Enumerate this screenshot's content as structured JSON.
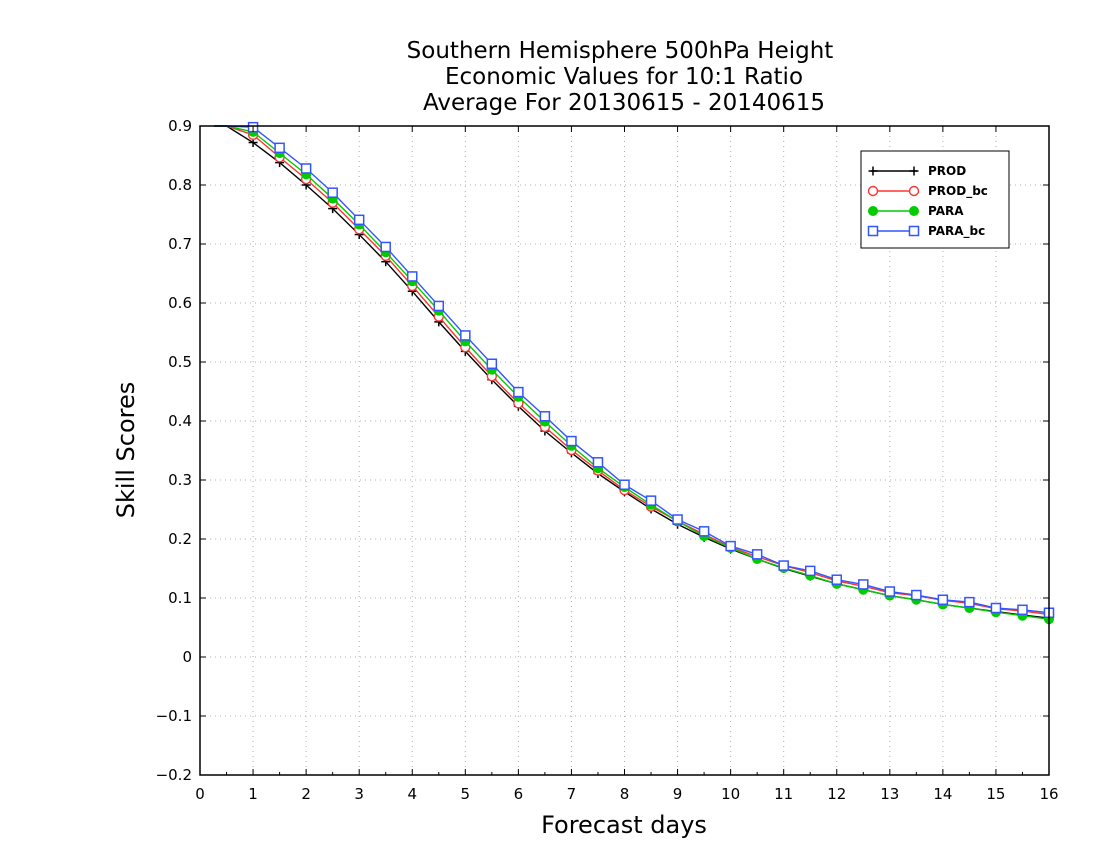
{
  "chart_data": {
    "type": "line",
    "title_lines": [
      "Southern Hemisphere 500hPa Height",
      "Economic Values for 10:1 Ratio",
      "Average For 20130615 - 20140615"
    ],
    "xlabel": "Forecast days",
    "ylabel": "Skill Scores",
    "xlim": [
      0,
      16
    ],
    "ylim": [
      -0.2,
      0.9
    ],
    "xticks": [
      0,
      1,
      2,
      3,
      4,
      5,
      6,
      7,
      8,
      9,
      10,
      11,
      12,
      13,
      14,
      15,
      16
    ],
    "yticks": [
      -0.2,
      -0.1,
      0,
      0.1,
      0.2,
      0.3,
      0.4,
      0.5,
      0.6,
      0.7,
      0.8,
      0.9
    ],
    "ytick_labels": [
      "−0.2",
      "−0.1",
      "0",
      "0.1",
      "0.2",
      "0.3",
      "0.4",
      "0.5",
      "0.6",
      "0.7",
      "0.8",
      "0.9"
    ],
    "grid": true,
    "legend_position": "top-right",
    "x": [
      0.5,
      1,
      1.5,
      2,
      2.5,
      3,
      3.5,
      4,
      4.5,
      5,
      5.5,
      6,
      6.5,
      7,
      7.5,
      8,
      8.5,
      9,
      9.5,
      10,
      10.5,
      11,
      11.5,
      12,
      12.5,
      13,
      13.5,
      14,
      14.5,
      15,
      15.5,
      16
    ],
    "series": [
      {
        "name": "PROD",
        "color": "#000000",
        "marker": "plus",
        "values": [
          0.9,
          0.872,
          0.838,
          0.8,
          0.76,
          0.716,
          0.67,
          0.62,
          0.568,
          0.518,
          0.47,
          0.425,
          0.383,
          0.346,
          0.311,
          0.28,
          0.251,
          0.225,
          0.203,
          0.183,
          0.166,
          0.15,
          0.137,
          0.124,
          0.114,
          0.104,
          0.097,
          0.089,
          0.083,
          0.077,
          0.071,
          0.066
        ]
      },
      {
        "name": "PROD_bc",
        "color": "#ff3333",
        "marker": "circle",
        "values": [
          0.9,
          0.885,
          0.847,
          0.81,
          0.77,
          0.725,
          0.68,
          0.629,
          0.577,
          0.525,
          0.476,
          0.43,
          0.39,
          0.351,
          0.316,
          0.283,
          0.255,
          0.23,
          0.208,
          0.186,
          0.17,
          0.155,
          0.143,
          0.129,
          0.12,
          0.109,
          0.104,
          0.096,
          0.091,
          0.082,
          0.078,
          0.072
        ]
      },
      {
        "name": "PARA",
        "color": "#00cc00",
        "marker": "dot",
        "values": [
          0.9,
          0.89,
          0.854,
          0.818,
          0.777,
          0.733,
          0.686,
          0.637,
          0.587,
          0.535,
          0.487,
          0.441,
          0.399,
          0.358,
          0.32,
          0.288,
          0.258,
          0.23,
          0.205,
          0.185,
          0.166,
          0.151,
          0.138,
          0.124,
          0.114,
          0.104,
          0.097,
          0.089,
          0.083,
          0.076,
          0.07,
          0.064
        ]
      },
      {
        "name": "PARA_bc",
        "color": "#3355ff",
        "marker": "square",
        "values": [
          0.9,
          0.898,
          0.863,
          0.828,
          0.787,
          0.741,
          0.695,
          0.645,
          0.595,
          0.545,
          0.497,
          0.449,
          0.408,
          0.366,
          0.33,
          0.292,
          0.265,
          0.233,
          0.213,
          0.188,
          0.174,
          0.155,
          0.146,
          0.131,
          0.123,
          0.111,
          0.105,
          0.097,
          0.093,
          0.083,
          0.08,
          0.075
        ]
      }
    ]
  }
}
